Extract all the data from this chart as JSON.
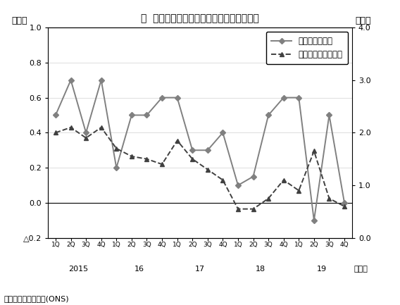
{
  "title": "図  英国の四半期別実質ＧＤＰ成長率の推移",
  "left_label": "（％）",
  "right_label": "（％）",
  "xlabel_year": "（年）",
  "source": "（出所）国民統計局(ONS)",
  "legend_line1": "前期比（左軸）",
  "legend_line2": "前年同期比（右軸）",
  "x_labels": [
    "1Q",
    "2Q",
    "3Q",
    "4Q",
    "1Q",
    "2Q",
    "3Q",
    "4Q",
    "1Q",
    "2Q",
    "3Q",
    "4Q",
    "1Q",
    "2Q",
    "3Q",
    "4Q",
    "1Q",
    "2Q",
    "3Q",
    "4Q"
  ],
  "year_labels": [
    [
      "2015",
      1.5
    ],
    [
      "16",
      5.5
    ],
    [
      "17",
      9.5
    ],
    [
      "18",
      13.5
    ],
    [
      "19",
      17.5
    ]
  ],
  "left_axis": {
    "ylim": [
      -0.2,
      1.0
    ],
    "yticks": [
      -0.2,
      0.0,
      0.2,
      0.4,
      0.6,
      0.8,
      1.0
    ],
    "ytick_labels": [
      "△0.2",
      "0.0",
      "0.2",
      "0.4",
      "0.6",
      "0.8",
      "1.0"
    ]
  },
  "right_axis": {
    "ylim": [
      0.0,
      4.0
    ],
    "yticks": [
      0.0,
      1.0,
      2.0,
      3.0,
      4.0
    ],
    "ytick_labels": [
      "0.0",
      "1.0",
      "2.0",
      "3.0",
      "4.0"
    ]
  },
  "line1_values": [
    0.5,
    0.7,
    0.4,
    0.7,
    0.2,
    0.5,
    0.5,
    0.6,
    0.6,
    0.3,
    0.3,
    0.4,
    0.1,
    0.15,
    0.5,
    0.6,
    0.6,
    -0.1,
    0.5,
    0.0
  ],
  "line2_values": [
    2.0,
    2.1,
    1.9,
    2.1,
    1.7,
    1.55,
    1.5,
    1.4,
    1.85,
    1.5,
    1.3,
    1.1,
    0.55,
    0.55,
    0.75,
    1.1,
    0.9,
    1.65,
    0.75,
    0.6
  ],
  "line1_color": "#808080",
  "line2_color": "#404040",
  "bg_color": "#ffffff",
  "plot_bg_color": "#ffffff",
  "figsize": [
    5.68,
    4.33
  ],
  "dpi": 100
}
